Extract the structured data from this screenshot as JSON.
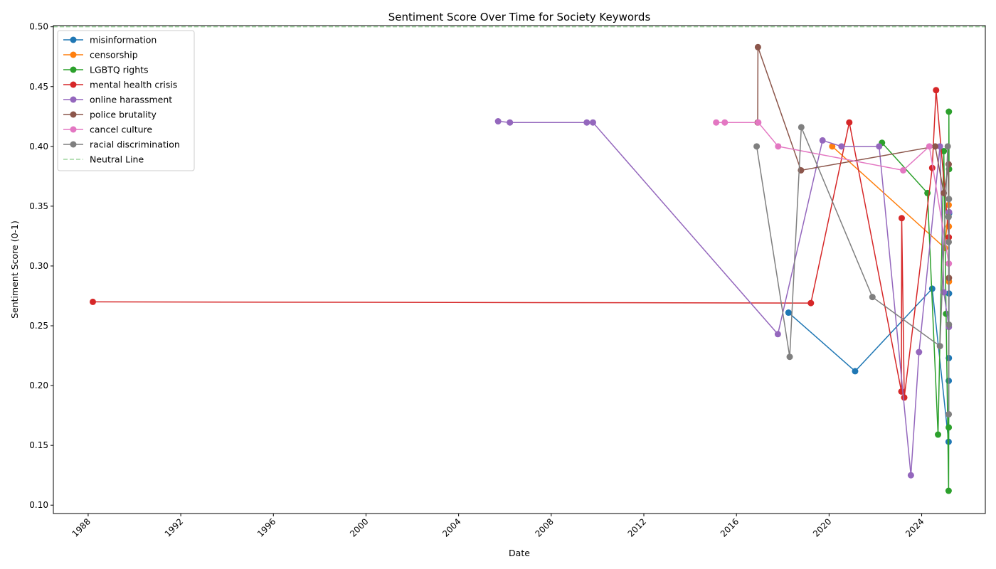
{
  "chart_data": {
    "type": "line",
    "title": "Sentiment Score Over Time for Society Keywords",
    "xlabel": "Date",
    "ylabel": "Sentiment Score (0-1)",
    "xlim": [
      "1986-07-01",
      "2026-10-01"
    ],
    "ylim": [
      0.093,
      0.501
    ],
    "x_ticks": [
      "1988",
      "1992",
      "1996",
      "2000",
      "2004",
      "2008",
      "2012",
      "2016",
      "2020",
      "2024"
    ],
    "y_ticks": [
      "0.10",
      "0.15",
      "0.20",
      "0.25",
      "0.30",
      "0.35",
      "0.40",
      "0.45",
      "0.50"
    ],
    "grid": false,
    "legend_position": "top-left",
    "neutral_line": {
      "name": "Neutral Line",
      "value": 0.5,
      "color": "#9fd59f",
      "style": "dashed"
    },
    "series": [
      {
        "name": "misinformation",
        "color": "#1f77b4",
        "points": [
          [
            "2018-04-01",
            0.261
          ],
          [
            "2021-02-15",
            0.212
          ],
          [
            "2024-06-15",
            0.281
          ],
          [
            "2025-03-01",
            0.153
          ],
          [
            "2025-03-03",
            0.204
          ],
          [
            "2025-03-05",
            0.223
          ],
          [
            "2025-03-07",
            0.277
          ],
          [
            "2025-03-09",
            0.344
          ]
        ]
      },
      {
        "name": "censorship",
        "color": "#ff7f0e",
        "points": [
          [
            "2020-02-20",
            0.4
          ],
          [
            "2025-01-01",
            0.315
          ],
          [
            "2025-03-02",
            0.351
          ],
          [
            "2025-03-04",
            0.333
          ],
          [
            "2025-03-06",
            0.287
          ]
        ]
      },
      {
        "name": "LGBTQ rights",
        "color": "#2ca02c",
        "points": [
          [
            "2022-04-15",
            0.403
          ],
          [
            "2024-04-01",
            0.361
          ],
          [
            "2024-09-15",
            0.159
          ],
          [
            "2024-12-15",
            0.396
          ],
          [
            "2025-01-20",
            0.26
          ],
          [
            "2025-03-01",
            0.112
          ],
          [
            "2025-03-03",
            0.165
          ],
          [
            "2025-03-05",
            0.429
          ],
          [
            "2025-03-08",
            0.381
          ]
        ]
      },
      {
        "name": "mental health crisis",
        "color": "#d62728",
        "points": [
          [
            "1988-03-15",
            0.27
          ],
          [
            "2019-03-20",
            0.269
          ],
          [
            "2020-11-15",
            0.42
          ],
          [
            "2023-02-15",
            0.195
          ],
          [
            "2023-02-20",
            0.34
          ],
          [
            "2023-04-01",
            0.19
          ],
          [
            "2024-06-15",
            0.382
          ],
          [
            "2024-08-15",
            0.447
          ],
          [
            "2025-03-03",
            0.324
          ]
        ]
      },
      {
        "name": "online harassment",
        "color": "#9467bd",
        "points": [
          [
            "2005-09-15",
            0.421
          ],
          [
            "2006-03-20",
            0.42
          ],
          [
            "2009-07-15",
            0.42
          ],
          [
            "2009-10-20",
            0.42
          ],
          [
            "2017-10-15",
            0.243
          ],
          [
            "2019-09-20",
            0.405
          ],
          [
            "2020-07-15",
            0.4
          ],
          [
            "2022-03-01",
            0.4
          ],
          [
            "2023-07-15",
            0.125
          ],
          [
            "2023-11-20",
            0.228
          ],
          [
            "2024-10-15",
            0.4
          ],
          [
            "2024-12-15",
            0.278
          ],
          [
            "2025-03-05",
            0.249
          ],
          [
            "2025-03-08",
            0.345
          ]
        ]
      },
      {
        "name": "police brutality",
        "color": "#8c564b",
        "points": [
          [
            "2016-12-01",
            0.42
          ],
          [
            "2016-12-05",
            0.483
          ],
          [
            "2018-10-15",
            0.38
          ],
          [
            "2024-08-01",
            0.4
          ],
          [
            "2024-12-15",
            0.361
          ],
          [
            "2025-03-02",
            0.385
          ],
          [
            "2025-03-06",
            0.29
          ]
        ]
      },
      {
        "name": "cancel culture",
        "color": "#e377c2",
        "points": [
          [
            "2015-02-15",
            0.42
          ],
          [
            "2015-07-01",
            0.42
          ],
          [
            "2016-12-10",
            0.42
          ],
          [
            "2017-10-20",
            0.4
          ],
          [
            "2023-03-15",
            0.38
          ],
          [
            "2024-05-01",
            0.4
          ],
          [
            "2025-03-04",
            0.302
          ]
        ]
      },
      {
        "name": "racial discrimination",
        "color": "#7f7f7f",
        "points": [
          [
            "2016-11-15",
            0.4
          ],
          [
            "2018-04-20",
            0.224
          ],
          [
            "2018-10-20",
            0.416
          ],
          [
            "2021-11-15",
            0.274
          ],
          [
            "2024-10-15",
            0.233
          ],
          [
            "2025-02-15",
            0.4
          ],
          [
            "2025-03-01",
            0.341
          ],
          [
            "2025-03-02",
            0.32
          ],
          [
            "2025-03-03",
            0.176
          ],
          [
            "2025-03-05",
            0.251
          ],
          [
            "2025-03-06",
            0.356
          ]
        ]
      }
    ]
  }
}
